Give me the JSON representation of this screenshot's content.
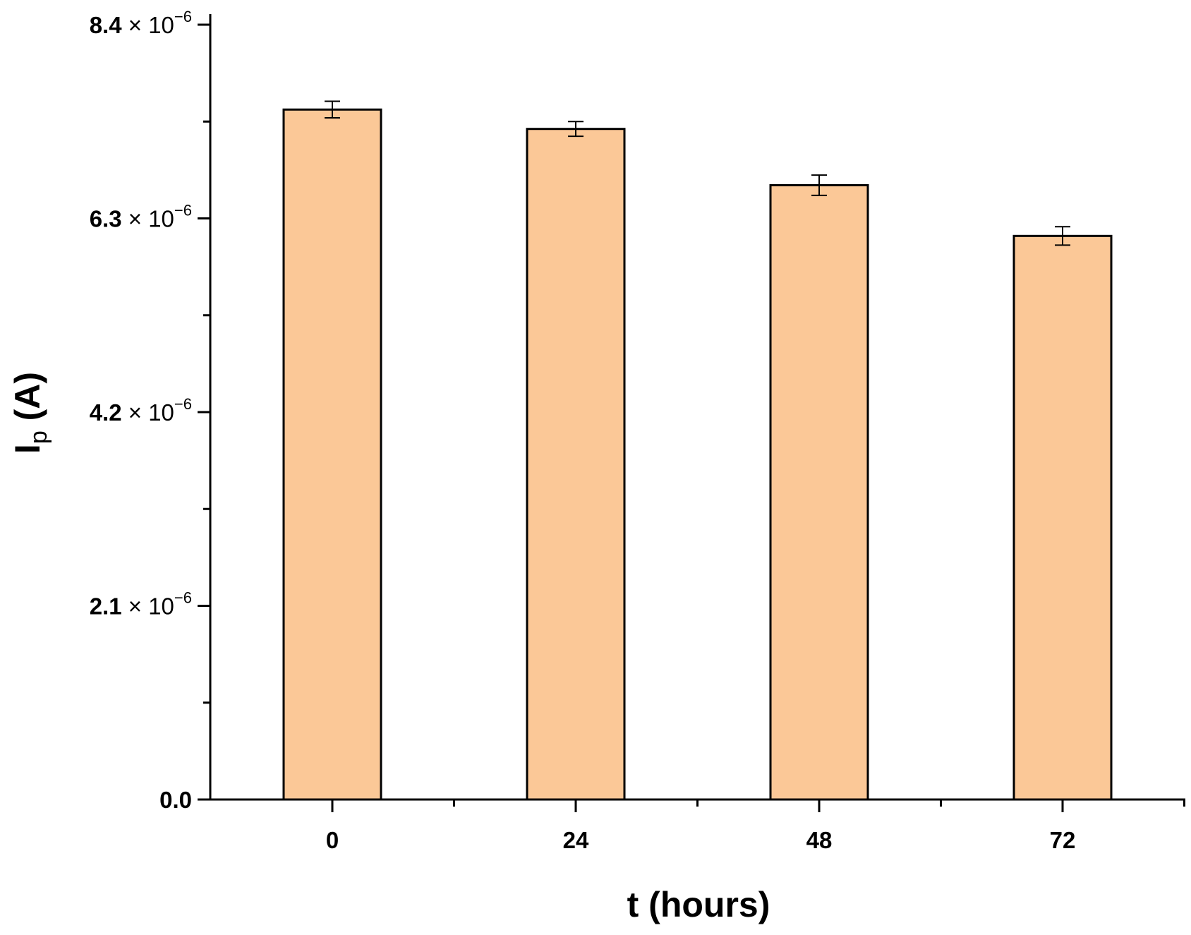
{
  "chart_data": {
    "type": "bar",
    "xlabel": "t (hours)",
    "ylabel": {
      "main": "I",
      "sub": "p",
      "suffix": " (A)"
    },
    "categories": [
      "0",
      "24",
      "48",
      "72"
    ],
    "values": [
      7.48e-06,
      7.27e-06,
      6.66e-06,
      6.11e-06
    ],
    "errors": [
      9e-08,
      8e-08,
      1.1e-07,
      1e-07
    ],
    "ylim": [
      0,
      8.4e-06
    ],
    "yticks": [
      {
        "value": 0,
        "mantissa": "0.0",
        "times": "",
        "base": "",
        "exp": ""
      },
      {
        "value": 2.1e-06,
        "mantissa": "2.1",
        "times": " × ",
        "base": "10",
        "exp": "−6"
      },
      {
        "value": 4.2e-06,
        "mantissa": "4.2",
        "times": " × ",
        "base": "10",
        "exp": "−6"
      },
      {
        "value": 6.3e-06,
        "mantissa": "6.3",
        "times": " × ",
        "base": "10",
        "exp": "−6"
      },
      {
        "value": 8.4e-06,
        "mantissa": "8.4",
        "times": " × ",
        "base": "10",
        "exp": "−6"
      }
    ],
    "y_minor_ticks": [
      1.05e-06,
      3.15e-06,
      5.25e-06,
      7.35e-06
    ],
    "bar_color": "#FBC897",
    "bar_edge_color": "#000000",
    "grid": false,
    "legend": "none"
  }
}
